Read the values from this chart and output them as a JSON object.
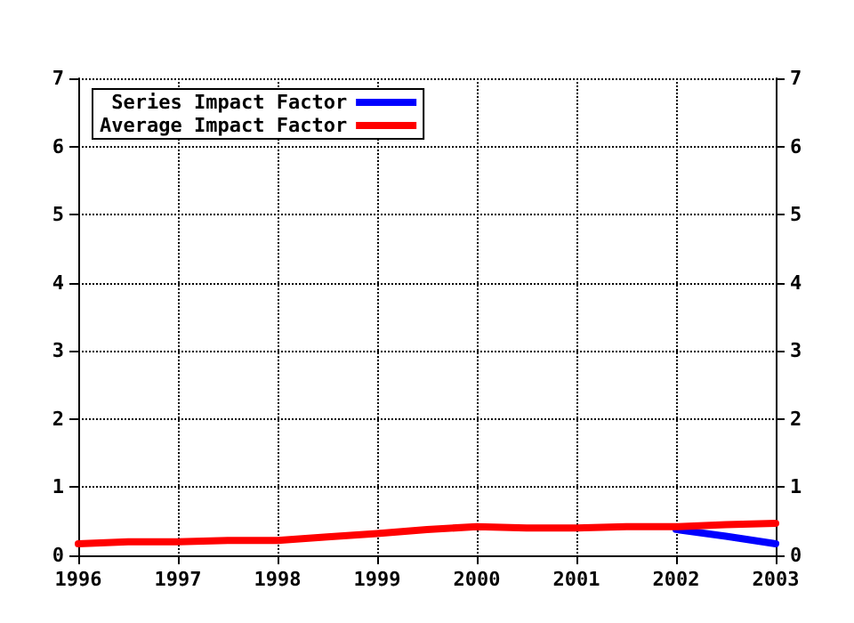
{
  "chart_data": {
    "type": "line",
    "x": [
      1996,
      1996.5,
      1997,
      1997.5,
      1998,
      1998.5,
      1999,
      1999.5,
      2000,
      2000.5,
      2001,
      2001.5,
      2002,
      2002.5,
      2003
    ],
    "series": [
      {
        "name": "Series Impact Factor",
        "color": "#0000ff",
        "x": [
          2002,
          2002.5,
          2003
        ],
        "values": [
          0.38,
          0.28,
          0.17
        ]
      },
      {
        "name": "Average Impact Factor",
        "color": "#ff0000",
        "values": [
          0.17,
          0.2,
          0.2,
          0.22,
          0.22,
          0.27,
          0.32,
          0.38,
          0.42,
          0.4,
          0.4,
          0.42,
          0.42,
          0.45,
          0.47
        ]
      }
    ],
    "xlim": [
      1996,
      2003
    ],
    "xticks": [
      1996,
      1997,
      1998,
      1999,
      2000,
      2001,
      2002,
      2003
    ],
    "ylim": [
      0,
      7
    ],
    "yticks": [
      0,
      1,
      2,
      3,
      4,
      5,
      6,
      7
    ],
    "y2lim": [
      0,
      7
    ],
    "y2ticks": [
      0,
      1,
      2,
      3,
      4,
      5,
      6,
      7
    ],
    "grid": true,
    "legend": "top left",
    "marker": "none",
    "line_style": "solid"
  }
}
